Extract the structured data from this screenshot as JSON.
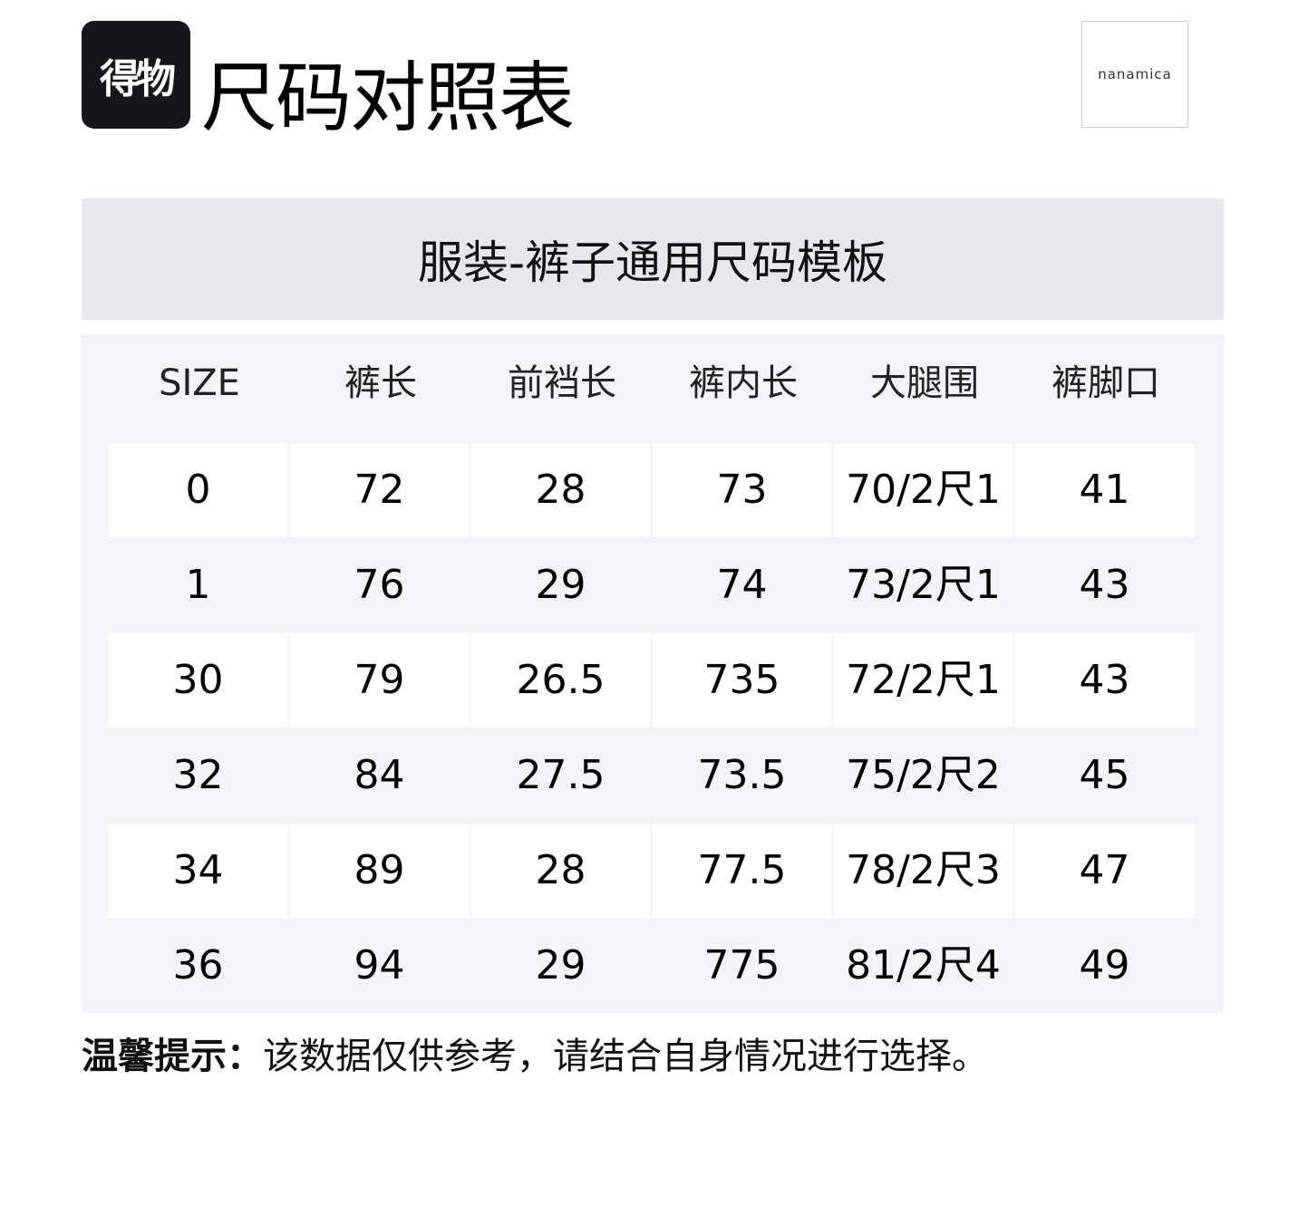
{
  "logo_text": "得物",
  "title": "尺码对照表",
  "brand": "nanamica",
  "template_title": "服装-裤子通用尺码模板",
  "table": {
    "headers": [
      "SIZE",
      "裤长",
      "前裆长",
      "裤内长",
      "大腿围",
      "裤脚口"
    ],
    "rows": [
      [
        "0",
        "72",
        "28",
        "73",
        "70/2尺1",
        "41"
      ],
      [
        "1",
        "76",
        "29",
        "74",
        "73/2尺1",
        "43"
      ],
      [
        "30",
        "79",
        "26.5",
        "735",
        "72/2尺1",
        "43"
      ],
      [
        "32",
        "84",
        "27.5",
        "73.5",
        "75/2尺2",
        "45"
      ],
      [
        "34",
        "89",
        "28",
        "77.5",
        "78/2尺3",
        "47"
      ],
      [
        "36",
        "94",
        "29",
        "775",
        "81/2尺4",
        "49"
      ]
    ]
  },
  "tip": {
    "label": "温馨提示：",
    "text": "该数据仅供参考，请结合自身情况进行选择。"
  }
}
